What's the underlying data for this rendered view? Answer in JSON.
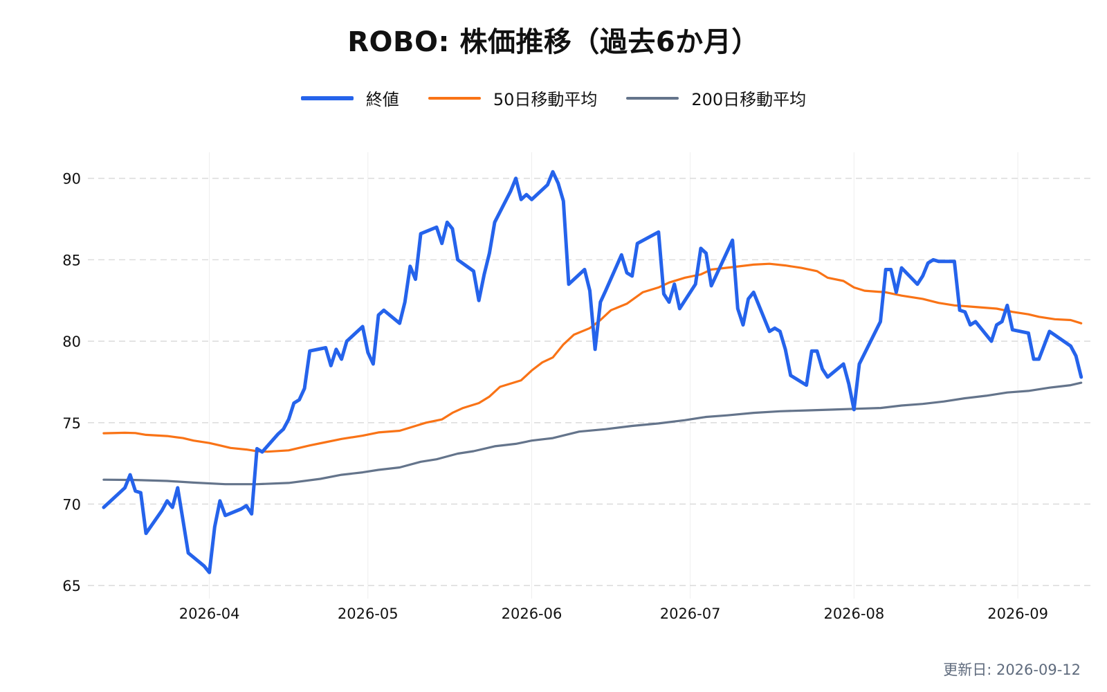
{
  "chart_data": {
    "type": "line",
    "title": "ROBO: 株価推移（過去6か月）",
    "footer": "更新日: 2026-09-12",
    "xlabel": "",
    "ylabel": "",
    "x_ticks": [
      "2026-04",
      "2026-05",
      "2026-06",
      "2026-07",
      "2026-08",
      "2026-09"
    ],
    "y_ticks": [
      65,
      70,
      75,
      80,
      85,
      90
    ],
    "ylim": [
      64.2,
      91.6
    ],
    "xlim": [
      "2026-03-09",
      "2026-09-15"
    ],
    "grid": {
      "horizontal": "dashed",
      "vertical": "solid-light"
    },
    "legend_position": "top-center",
    "series": [
      {
        "name": "終値",
        "color": "#2563eb",
        "style": "line-thick",
        "points": [
          [
            "2026-03-12",
            69.8
          ],
          [
            "2026-03-16",
            71.0
          ],
          [
            "2026-03-17",
            71.8
          ],
          [
            "2026-03-18",
            70.8
          ],
          [
            "2026-03-19",
            70.7
          ],
          [
            "2026-03-20",
            68.2
          ],
          [
            "2026-03-23",
            69.6
          ],
          [
            "2026-03-24",
            70.2
          ],
          [
            "2026-03-25",
            69.8
          ],
          [
            "2026-03-26",
            71.0
          ],
          [
            "2026-03-27",
            69.0
          ],
          [
            "2026-03-28",
            67.0
          ],
          [
            "2026-03-31",
            66.2
          ],
          [
            "2026-04-01",
            65.8
          ],
          [
            "2026-04-02",
            68.6
          ],
          [
            "2026-04-03",
            70.2
          ],
          [
            "2026-04-04",
            69.3
          ],
          [
            "2026-04-07",
            69.7
          ],
          [
            "2026-04-08",
            69.9
          ],
          [
            "2026-04-09",
            69.4
          ],
          [
            "2026-04-10",
            73.4
          ],
          [
            "2026-04-11",
            73.2
          ],
          [
            "2026-04-14",
            74.3
          ],
          [
            "2026-04-15",
            74.6
          ],
          [
            "2026-04-16",
            75.2
          ],
          [
            "2026-04-17",
            76.2
          ],
          [
            "2026-04-18",
            76.4
          ],
          [
            "2026-04-19",
            77.1
          ],
          [
            "2026-04-20",
            79.4
          ],
          [
            "2026-04-23",
            79.6
          ],
          [
            "2026-04-24",
            78.5
          ],
          [
            "2026-04-25",
            79.5
          ],
          [
            "2026-04-26",
            78.9
          ],
          [
            "2026-04-27",
            80.0
          ],
          [
            "2026-04-30",
            80.9
          ],
          [
            "2026-05-01",
            79.3
          ],
          [
            "2026-05-02",
            78.6
          ],
          [
            "2026-05-03",
            81.6
          ],
          [
            "2026-05-04",
            81.9
          ],
          [
            "2026-05-07",
            81.1
          ],
          [
            "2026-05-08",
            82.4
          ],
          [
            "2026-05-09",
            84.6
          ],
          [
            "2026-05-10",
            83.8
          ],
          [
            "2026-05-11",
            86.6
          ],
          [
            "2026-05-14",
            87.0
          ],
          [
            "2026-05-15",
            86.0
          ],
          [
            "2026-05-16",
            87.3
          ],
          [
            "2026-05-17",
            86.9
          ],
          [
            "2026-05-18",
            85.0
          ],
          [
            "2026-05-21",
            84.3
          ],
          [
            "2026-05-22",
            82.5
          ],
          [
            "2026-05-23",
            84.1
          ],
          [
            "2026-05-24",
            85.4
          ],
          [
            "2026-05-25",
            87.3
          ],
          [
            "2026-05-28",
            89.2
          ],
          [
            "2026-05-29",
            90.0
          ],
          [
            "2026-05-30",
            88.7
          ],
          [
            "2026-05-31",
            89.0
          ],
          [
            "2026-06-01",
            88.7
          ],
          [
            "2026-06-04",
            89.6
          ],
          [
            "2026-06-05",
            90.4
          ],
          [
            "2026-06-06",
            89.7
          ],
          [
            "2026-06-07",
            88.6
          ],
          [
            "2026-06-08",
            83.5
          ],
          [
            "2026-06-11",
            84.4
          ],
          [
            "2026-06-12",
            83.1
          ],
          [
            "2026-06-13",
            79.5
          ],
          [
            "2026-06-14",
            82.4
          ],
          [
            "2026-06-15",
            83.1
          ],
          [
            "2026-06-18",
            85.3
          ],
          [
            "2026-06-19",
            84.2
          ],
          [
            "2026-06-20",
            84.0
          ],
          [
            "2026-06-21",
            86.0
          ],
          [
            "2026-06-25",
            86.7
          ],
          [
            "2026-06-26",
            82.9
          ],
          [
            "2026-06-27",
            82.4
          ],
          [
            "2026-06-28",
            83.5
          ],
          [
            "2026-06-29",
            82.0
          ],
          [
            "2026-07-02",
            83.5
          ],
          [
            "2026-07-03",
            85.7
          ],
          [
            "2026-07-04",
            85.4
          ],
          [
            "2026-07-05",
            83.4
          ],
          [
            "2026-07-09",
            86.2
          ],
          [
            "2026-07-10",
            82.0
          ],
          [
            "2026-07-11",
            81.0
          ],
          [
            "2026-07-12",
            82.6
          ],
          [
            "2026-07-13",
            83.0
          ],
          [
            "2026-07-16",
            80.6
          ],
          [
            "2026-07-17",
            80.8
          ],
          [
            "2026-07-18",
            80.6
          ],
          [
            "2026-07-19",
            79.5
          ],
          [
            "2026-07-20",
            77.9
          ],
          [
            "2026-07-23",
            77.3
          ],
          [
            "2026-07-24",
            79.4
          ],
          [
            "2026-07-25",
            79.4
          ],
          [
            "2026-07-26",
            78.3
          ],
          [
            "2026-07-27",
            77.8
          ],
          [
            "2026-07-30",
            78.6
          ],
          [
            "2026-07-31",
            77.4
          ],
          [
            "2026-08-01",
            75.8
          ],
          [
            "2026-08-02",
            78.6
          ],
          [
            "2026-08-06",
            81.2
          ],
          [
            "2026-08-07",
            84.4
          ],
          [
            "2026-08-08",
            84.4
          ],
          [
            "2026-08-09",
            83.0
          ],
          [
            "2026-08-10",
            84.5
          ],
          [
            "2026-08-13",
            83.5
          ],
          [
            "2026-08-14",
            84.0
          ],
          [
            "2026-08-15",
            84.8
          ],
          [
            "2026-08-16",
            85.0
          ],
          [
            "2026-08-17",
            84.9
          ],
          [
            "2026-08-20",
            84.9
          ],
          [
            "2026-08-21",
            81.9
          ],
          [
            "2026-08-22",
            81.8
          ],
          [
            "2026-08-23",
            81.0
          ],
          [
            "2026-08-24",
            81.2
          ],
          [
            "2026-08-27",
            80.0
          ],
          [
            "2026-08-28",
            81.0
          ],
          [
            "2026-08-29",
            81.2
          ],
          [
            "2026-08-30",
            82.2
          ],
          [
            "2026-08-31",
            80.7
          ],
          [
            "2026-09-03",
            80.5
          ],
          [
            "2026-09-04",
            78.9
          ],
          [
            "2026-09-05",
            78.9
          ],
          [
            "2026-09-07",
            80.6
          ],
          [
            "2026-09-11",
            79.7
          ],
          [
            "2026-09-12",
            79.1
          ],
          [
            "2026-09-13",
            77.8
          ]
        ]
      },
      {
        "name": "50日移動平均",
        "color": "#f97316",
        "style": "line",
        "points": [
          [
            "2026-03-12",
            74.35
          ],
          [
            "2026-03-16",
            74.38
          ],
          [
            "2026-03-18",
            74.36
          ],
          [
            "2026-03-20",
            74.25
          ],
          [
            "2026-03-24",
            74.18
          ],
          [
            "2026-03-27",
            74.05
          ],
          [
            "2026-03-29",
            73.9
          ],
          [
            "2026-04-01",
            73.75
          ],
          [
            "2026-04-03",
            73.6
          ],
          [
            "2026-04-05",
            73.45
          ],
          [
            "2026-04-08",
            73.35
          ],
          [
            "2026-04-10",
            73.25
          ],
          [
            "2026-04-12",
            73.22
          ],
          [
            "2026-04-16",
            73.3
          ],
          [
            "2026-04-20",
            73.6
          ],
          [
            "2026-04-23",
            73.8
          ],
          [
            "2026-04-26",
            74.0
          ],
          [
            "2026-04-30",
            74.2
          ],
          [
            "2026-05-03",
            74.4
          ],
          [
            "2026-05-07",
            74.5
          ],
          [
            "2026-05-10",
            74.8
          ],
          [
            "2026-05-12",
            75.0
          ],
          [
            "2026-05-15",
            75.2
          ],
          [
            "2026-05-17",
            75.6
          ],
          [
            "2026-05-19",
            75.9
          ],
          [
            "2026-05-22",
            76.2
          ],
          [
            "2026-05-24",
            76.6
          ],
          [
            "2026-05-26",
            77.2
          ],
          [
            "2026-05-30",
            77.6
          ],
          [
            "2026-06-01",
            78.2
          ],
          [
            "2026-06-03",
            78.7
          ],
          [
            "2026-06-05",
            79.0
          ],
          [
            "2026-06-07",
            79.8
          ],
          [
            "2026-06-09",
            80.4
          ],
          [
            "2026-06-12",
            80.8
          ],
          [
            "2026-06-14",
            81.3
          ],
          [
            "2026-06-16",
            81.9
          ],
          [
            "2026-06-19",
            82.3
          ],
          [
            "2026-06-22",
            83.0
          ],
          [
            "2026-06-25",
            83.3
          ],
          [
            "2026-06-27",
            83.6
          ],
          [
            "2026-06-30",
            83.9
          ],
          [
            "2026-07-03",
            84.1
          ],
          [
            "2026-07-05",
            84.4
          ],
          [
            "2026-07-09",
            84.55
          ],
          [
            "2026-07-13",
            84.7
          ],
          [
            "2026-07-16",
            84.75
          ],
          [
            "2026-07-19",
            84.65
          ],
          [
            "2026-07-22",
            84.5
          ],
          [
            "2026-07-25",
            84.3
          ],
          [
            "2026-07-27",
            83.9
          ],
          [
            "2026-07-30",
            83.7
          ],
          [
            "2026-08-01",
            83.3
          ],
          [
            "2026-08-03",
            83.1
          ],
          [
            "2026-08-07",
            83.0
          ],
          [
            "2026-08-10",
            82.8
          ],
          [
            "2026-08-14",
            82.6
          ],
          [
            "2026-08-17",
            82.35
          ],
          [
            "2026-08-20",
            82.2
          ],
          [
            "2026-08-24",
            82.1
          ],
          [
            "2026-08-28",
            82.0
          ],
          [
            "2026-08-31",
            81.8
          ],
          [
            "2026-09-03",
            81.65
          ],
          [
            "2026-09-05",
            81.5
          ],
          [
            "2026-09-08",
            81.35
          ],
          [
            "2026-09-11",
            81.3
          ],
          [
            "2026-09-13",
            81.1
          ]
        ]
      },
      {
        "name": "200日移動平均",
        "color": "#64748b",
        "style": "line",
        "points": [
          [
            "2026-03-12",
            71.5
          ],
          [
            "2026-03-18",
            71.48
          ],
          [
            "2026-03-24",
            71.42
          ],
          [
            "2026-03-29",
            71.32
          ],
          [
            "2026-04-04",
            71.22
          ],
          [
            "2026-04-10",
            71.22
          ],
          [
            "2026-04-16",
            71.3
          ],
          [
            "2026-04-22",
            71.55
          ],
          [
            "2026-04-26",
            71.8
          ],
          [
            "2026-04-30",
            71.95
          ],
          [
            "2026-05-03",
            72.1
          ],
          [
            "2026-05-07",
            72.25
          ],
          [
            "2026-05-11",
            72.6
          ],
          [
            "2026-05-14",
            72.75
          ],
          [
            "2026-05-18",
            73.1
          ],
          [
            "2026-05-21",
            73.25
          ],
          [
            "2026-05-25",
            73.55
          ],
          [
            "2026-05-29",
            73.7
          ],
          [
            "2026-06-01",
            73.9
          ],
          [
            "2026-06-05",
            74.05
          ],
          [
            "2026-06-10",
            74.45
          ],
          [
            "2026-06-15",
            74.6
          ],
          [
            "2026-06-20",
            74.8
          ],
          [
            "2026-06-25",
            74.95
          ],
          [
            "2026-06-30",
            75.15
          ],
          [
            "2026-07-04",
            75.35
          ],
          [
            "2026-07-08",
            75.45
          ],
          [
            "2026-07-13",
            75.6
          ],
          [
            "2026-07-18",
            75.7
          ],
          [
            "2026-07-23",
            75.75
          ],
          [
            "2026-07-28",
            75.8
          ],
          [
            "2026-08-01",
            75.85
          ],
          [
            "2026-08-06",
            75.9
          ],
          [
            "2026-08-10",
            76.05
          ],
          [
            "2026-08-14",
            76.15
          ],
          [
            "2026-08-18",
            76.3
          ],
          [
            "2026-08-22",
            76.5
          ],
          [
            "2026-08-26",
            76.65
          ],
          [
            "2026-08-30",
            76.85
          ],
          [
            "2026-09-03",
            76.95
          ],
          [
            "2026-09-07",
            77.15
          ],
          [
            "2026-09-11",
            77.3
          ],
          [
            "2026-09-13",
            77.45
          ]
        ]
      }
    ]
  }
}
